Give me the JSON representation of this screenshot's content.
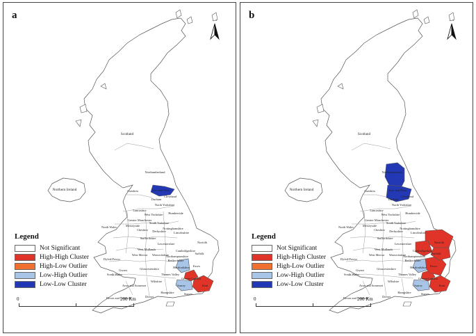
{
  "legend": {
    "title": "Legend",
    "items": [
      {
        "label": "Not Significant",
        "color": "#ffffff"
      },
      {
        "label": "High-High Cluster",
        "color": "#e03428"
      },
      {
        "label": "High-Low Outlier",
        "color": "#f07030"
      },
      {
        "label": "Low-High Outlier",
        "color": "#a8c4e6"
      },
      {
        "label": "Low-Low Cluster",
        "color": "#2338b4"
      }
    ]
  },
  "scale": {
    "zero": "0",
    "max": "200 Km"
  },
  "north_label": "N",
  "panels": [
    {
      "letter": "a",
      "regions": {
        "Kent": "High-High Cluster",
        "Greater London": "High-High Cluster",
        "Surrey": "Low-High Outlier",
        "Hertfordshire": "Low-High Outlier",
        "Tyne and Wear": "Low-Low Cluster"
      }
    },
    {
      "letter": "b",
      "regions": {
        "Kent": "High-High Cluster",
        "Greater London": "High-High Cluster",
        "Essex": "High-High Cluster",
        "Norfolk": "High-High Cluster",
        "Suffolk": "High-High Cluster",
        "Cambridgeshire": "High-High Cluster",
        "Surrey": "Low-High Outlier",
        "Hertfordshire": "Low-High Outlier",
        "Northumberland": "Low-Low Cluster",
        "Tyne and Wear": "Low-Low Cluster",
        "Durham": "Low-Low Cluster"
      }
    }
  ],
  "labels": [
    "Scotland",
    "Northern Ireland",
    "Northumberland",
    "Tyne and Wear",
    "Durham",
    "Cleveland",
    "Cumbria",
    "North Yorkshire",
    "Lancashire",
    "West Yorkshire",
    "Humberside",
    "Greater Manchester",
    "Merseyside",
    "South Yorkshire",
    "North Wales",
    "Cheshire",
    "Derbyshire",
    "Nottinghamshire",
    "Lincolnshire",
    "Staffordshire",
    "Leicestershire",
    "Norfolk",
    "West Midlands",
    "Cambridgeshire",
    "Northamptonshire",
    "West Mercia",
    "Warwickshire",
    "Bedfordshire",
    "Suffolk",
    "Dyfed-Powys",
    "Gloucestershire",
    "Hertfordshire",
    "Essex",
    "Gwent",
    "South Wales",
    "Thames Valley",
    "Avon and Somerset",
    "Wiltshire",
    "Greater London",
    "Surrey",
    "Kent",
    "Hampshire",
    "Sussex",
    "Devon and Cornwall",
    "Dorset"
  ]
}
